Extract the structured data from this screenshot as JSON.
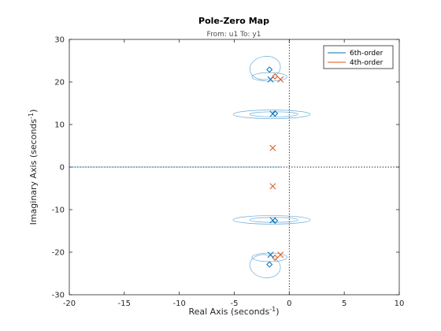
{
  "chart_data": {
    "type": "scatter",
    "title": "Pole-Zero Map",
    "subtitle": "From: u1  To: y1",
    "xlabel": {
      "text": "Real Axis (seconds",
      "sup": "-1",
      "close": ")"
    },
    "ylabel": {
      "text": "Imaginary Axis (seconds",
      "sup": "-1",
      "close": ")"
    },
    "xlim": [
      -20,
      10
    ],
    "ylim": [
      -30,
      30
    ],
    "xticks": [
      -20,
      -15,
      -10,
      -5,
      0,
      5,
      10
    ],
    "yticks": [
      -30,
      -20,
      -10,
      0,
      10,
      20,
      30
    ],
    "grid": false,
    "legend_position": "top-right",
    "reference_lines": {
      "vertical_dotted_x": 0,
      "horizontal_dotted_y": 0
    },
    "series": [
      {
        "name": "6th-order",
        "color": "#0072bd",
        "poles": [
          [
            -1.7,
            20.6
          ],
          [
            -1.7,
            -20.6
          ],
          [
            -1.5,
            12.5
          ],
          [
            -1.5,
            -12.5
          ]
        ],
        "zeros": [
          [
            -1.8,
            22.9
          ],
          [
            -1.8,
            -22.9
          ],
          [
            -1.3,
            12.6
          ],
          [
            -1.3,
            -12.6
          ]
        ]
      },
      {
        "name": "4th-order",
        "color": "#d95319",
        "poles": [
          [
            -0.8,
            20.6
          ],
          [
            -0.8,
            -20.6
          ],
          [
            -1.5,
            4.5
          ],
          [
            -1.5,
            -4.5
          ]
        ],
        "zeros": [
          [
            -1.3,
            21.3
          ],
          [
            -1.3,
            -21.3
          ]
        ]
      }
    ],
    "uncertainty_ellipses": {
      "series": "6th-order",
      "color": "#0072bd",
      "items": [
        {
          "cx": -2.2,
          "cy": 23.3,
          "rx": 1.4,
          "ry": 2.7,
          "rot": -10
        },
        {
          "cx": -1.8,
          "cy": 21.2,
          "rx": 1.6,
          "ry": 1.0,
          "rot": 0
        },
        {
          "cx": -1.8,
          "cy": -21.2,
          "rx": 1.6,
          "ry": 1.0,
          "rot": 0
        },
        {
          "cx": -2.2,
          "cy": -23.3,
          "rx": 1.4,
          "ry": 2.7,
          "rot": 10
        },
        {
          "cx": -1.6,
          "cy": 12.4,
          "rx": 3.5,
          "ry": 1.0,
          "rot": 0
        },
        {
          "cx": -1.4,
          "cy": 12.4,
          "rx": 2.2,
          "ry": 0.6,
          "rot": 0
        },
        {
          "cx": -1.6,
          "cy": -12.4,
          "rx": 3.5,
          "ry": 1.0,
          "rot": 0
        },
        {
          "cx": -1.4,
          "cy": -12.4,
          "rx": 2.2,
          "ry": 0.6,
          "rot": 0
        }
      ],
      "real_axis_span": [
        -20,
        -0.8
      ]
    }
  }
}
